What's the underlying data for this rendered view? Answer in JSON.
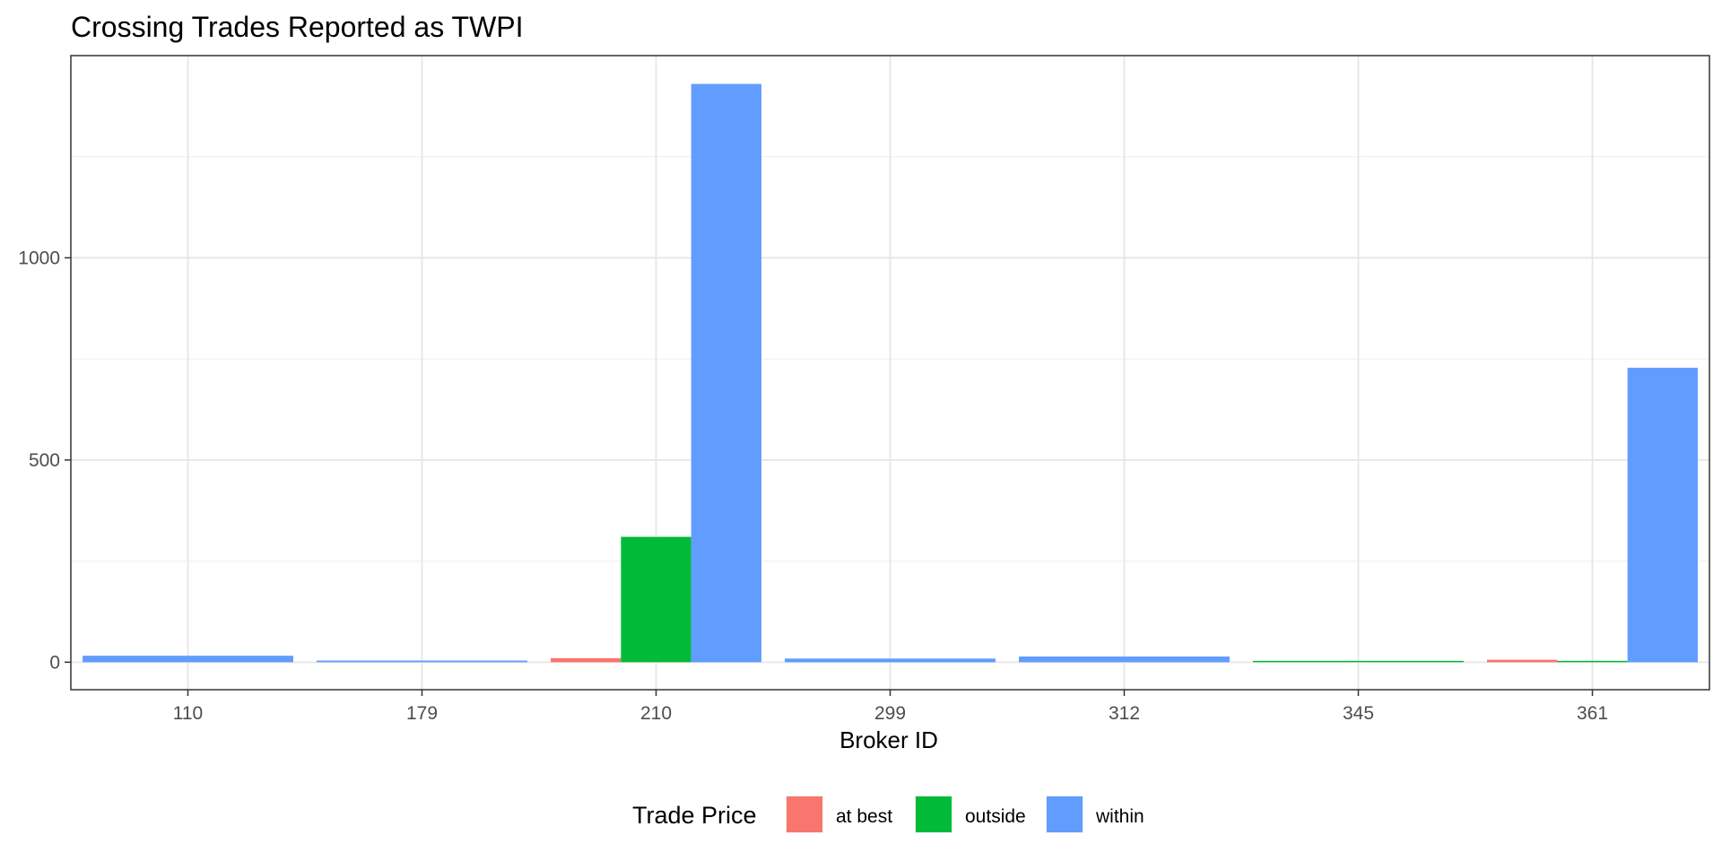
{
  "chart_data": {
    "type": "bar",
    "title": "Crossing Trades Reported as TWPI",
    "xlabel": "Broker ID",
    "ylabel": "",
    "categories": [
      "110",
      "179",
      "210",
      "299",
      "312",
      "345",
      "361"
    ],
    "series": [
      {
        "name": "at best",
        "color": "#F8766D",
        "values": [
          null,
          null,
          10,
          null,
          null,
          null,
          6
        ]
      },
      {
        "name": "outside",
        "color": "#00BA38",
        "values": [
          null,
          null,
          310,
          null,
          null,
          2,
          3
        ]
      },
      {
        "name": "within",
        "color": "#619CFF",
        "values": [
          16,
          4,
          1430,
          9,
          14,
          null,
          728
        ]
      }
    ],
    "bar_groups": [
      [
        "within"
      ],
      [
        "within"
      ],
      [
        "at best",
        "outside",
        "within"
      ],
      [
        "within"
      ],
      [
        "within"
      ],
      [
        "outside"
      ],
      [
        "at best",
        "outside",
        "within"
      ]
    ],
    "ylim": [
      -68,
      1500
    ],
    "yticks": [
      0,
      500,
      1000
    ],
    "grid": true,
    "legend": {
      "title": "Trade Price",
      "position": "bottom"
    }
  }
}
